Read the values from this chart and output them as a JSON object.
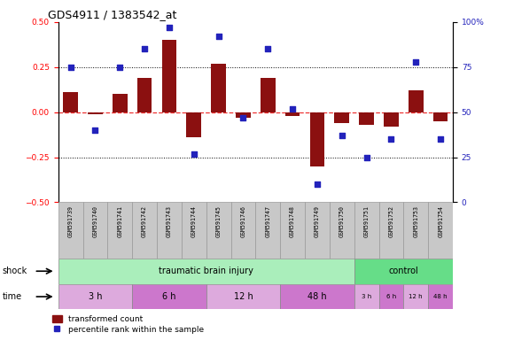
{
  "title": "GDS4911 / 1383542_at",
  "samples": [
    "GSM591739",
    "GSM591740",
    "GSM591741",
    "GSM591742",
    "GSM591743",
    "GSM591744",
    "GSM591745",
    "GSM591746",
    "GSM591747",
    "GSM591748",
    "GSM591749",
    "GSM591750",
    "GSM591751",
    "GSM591752",
    "GSM591753",
    "GSM591754"
  ],
  "red_bars": [
    0.11,
    -0.01,
    0.1,
    0.19,
    0.4,
    -0.14,
    0.27,
    -0.03,
    0.19,
    -0.02,
    -0.3,
    -0.06,
    -0.07,
    -0.08,
    0.12,
    -0.05
  ],
  "blue_dots_pct": [
    75,
    40,
    75,
    85,
    97,
    27,
    92,
    47,
    85,
    52,
    10,
    37,
    25,
    35,
    78,
    35
  ],
  "ylim_left": [
    -0.5,
    0.5
  ],
  "ylim_right": [
    0,
    100
  ],
  "yticks_left": [
    -0.5,
    -0.25,
    0.0,
    0.25,
    0.5
  ],
  "yticks_right": [
    0,
    25,
    50,
    75,
    100
  ],
  "bar_color": "#8B1010",
  "dot_color": "#2222BB",
  "red_line_color": "#EE3333",
  "shock_groups": [
    {
      "label": "traumatic brain injury",
      "start": 0,
      "end": 12,
      "color": "#AAEEBB"
    },
    {
      "label": "control",
      "start": 12,
      "end": 16,
      "color": "#66DD88"
    }
  ],
  "time_groups": [
    {
      "label": "3 h",
      "start": 0,
      "end": 3,
      "color": "#DDAADD"
    },
    {
      "label": "6 h",
      "start": 3,
      "end": 6,
      "color": "#CC77CC"
    },
    {
      "label": "12 h",
      "start": 6,
      "end": 9,
      "color": "#DDAADD"
    },
    {
      "label": "48 h",
      "start": 9,
      "end": 12,
      "color": "#CC77CC"
    },
    {
      "label": "3 h",
      "start": 12,
      "end": 13,
      "color": "#DDAADD"
    },
    {
      "label": "6 h",
      "start": 13,
      "end": 14,
      "color": "#CC77CC"
    },
    {
      "label": "12 h",
      "start": 14,
      "end": 15,
      "color": "#DDAADD"
    },
    {
      "label": "48 h",
      "start": 15,
      "end": 16,
      "color": "#CC77CC"
    }
  ],
  "shock_label": "shock",
  "time_label": "time",
  "legend_red": "transformed count",
  "legend_blue": "percentile rank within the sample",
  "sample_box_color": "#C8C8C8"
}
